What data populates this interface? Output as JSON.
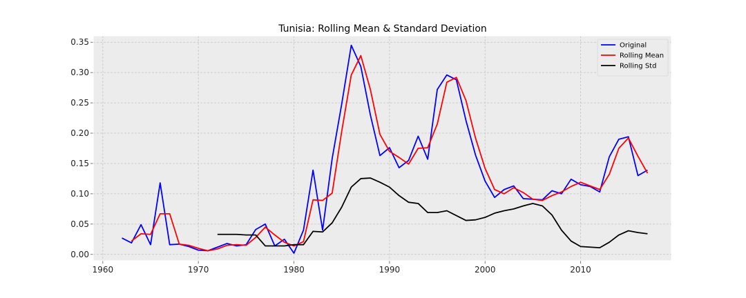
{
  "chart_data": {
    "type": "line",
    "title": "Tunisia: Rolling Mean & Standard Deviation",
    "xlabel": "",
    "ylabel": "",
    "xlim": [
      1959,
      2019.5
    ],
    "ylim": [
      -0.0105,
      0.3605
    ],
    "x_ticks": [
      1960,
      1970,
      1980,
      1990,
      2000,
      2010
    ],
    "y_ticks": [
      0.0,
      0.05,
      0.1,
      0.15,
      0.2,
      0.25,
      0.3,
      0.35
    ],
    "x_tick_labels": [
      "1960",
      "1970",
      "1980",
      "1990",
      "2000",
      "2010"
    ],
    "y_tick_labels": [
      "0.00",
      "0.05",
      "0.10",
      "0.15",
      "0.20",
      "0.25",
      "0.30",
      "0.35"
    ],
    "grid": true,
    "legend_position": "top-right",
    "series": [
      {
        "name": "Original",
        "color": "#0000ff",
        "points": [
          [
            1962,
            0.027
          ],
          [
            1963,
            0.019
          ],
          [
            1964,
            0.049
          ],
          [
            1965,
            0.016
          ],
          [
            1966,
            0.118
          ],
          [
            1967,
            0.016
          ],
          [
            1968,
            0.017
          ],
          [
            1969,
            0.013
          ],
          [
            1970,
            0.007
          ],
          [
            1971,
            0.006
          ],
          [
            1972,
            0.012
          ],
          [
            1973,
            0.018
          ],
          [
            1974,
            0.014
          ],
          [
            1975,
            0.016
          ],
          [
            1976,
            0.041
          ],
          [
            1977,
            0.05
          ],
          [
            1978,
            0.014
          ],
          [
            1979,
            0.025
          ],
          [
            1980,
            0.002
          ],
          [
            1981,
            0.04
          ],
          [
            1982,
            0.139
          ],
          [
            1983,
            0.04
          ],
          [
            1984,
            0.158
          ],
          [
            1985,
            0.248
          ],
          [
            1986,
            0.345
          ],
          [
            1987,
            0.31
          ],
          [
            1988,
            0.23
          ],
          [
            1989,
            0.163
          ],
          [
            1990,
            0.176
          ],
          [
            1991,
            0.143
          ],
          [
            1992,
            0.155
          ],
          [
            1993,
            0.195
          ],
          [
            1994,
            0.157
          ],
          [
            1995,
            0.272
          ],
          [
            1996,
            0.296
          ],
          [
            1997,
            0.288
          ],
          [
            1998,
            0.221
          ],
          [
            1999,
            0.164
          ],
          [
            2000,
            0.121
          ],
          [
            2001,
            0.094
          ],
          [
            2002,
            0.107
          ],
          [
            2003,
            0.113
          ],
          [
            2004,
            0.092
          ],
          [
            2005,
            0.091
          ],
          [
            2006,
            0.09
          ],
          [
            2007,
            0.105
          ],
          [
            2008,
            0.1
          ],
          [
            2009,
            0.124
          ],
          [
            2010,
            0.115
          ],
          [
            2011,
            0.112
          ],
          [
            2012,
            0.103
          ],
          [
            2013,
            0.161
          ],
          [
            2014,
            0.19
          ],
          [
            2015,
            0.194
          ],
          [
            2016,
            0.13
          ],
          [
            2017,
            0.139
          ]
        ]
      },
      {
        "name": "Rolling Mean",
        "color": "#ff0000",
        "points": [
          [
            1963,
            0.022
          ],
          [
            1964,
            0.034
          ],
          [
            1965,
            0.033
          ],
          [
            1966,
            0.067
          ],
          [
            1967,
            0.067
          ],
          [
            1968,
            0.017
          ],
          [
            1969,
            0.015
          ],
          [
            1970,
            0.01
          ],
          [
            1971,
            0.006
          ],
          [
            1972,
            0.009
          ],
          [
            1973,
            0.015
          ],
          [
            1974,
            0.016
          ],
          [
            1975,
            0.015
          ],
          [
            1976,
            0.028
          ],
          [
            1977,
            0.045
          ],
          [
            1978,
            0.032
          ],
          [
            1979,
            0.02
          ],
          [
            1980,
            0.014
          ],
          [
            1981,
            0.021
          ],
          [
            1982,
            0.09
          ],
          [
            1983,
            0.089
          ],
          [
            1984,
            0.101
          ],
          [
            1985,
            0.203
          ],
          [
            1986,
            0.296
          ],
          [
            1987,
            0.328
          ],
          [
            1988,
            0.272
          ],
          [
            1989,
            0.198
          ],
          [
            1990,
            0.17
          ],
          [
            1991,
            0.16
          ],
          [
            1992,
            0.149
          ],
          [
            1993,
            0.175
          ],
          [
            1994,
            0.176
          ],
          [
            1995,
            0.215
          ],
          [
            1996,
            0.284
          ],
          [
            1997,
            0.292
          ],
          [
            1998,
            0.254
          ],
          [
            1999,
            0.192
          ],
          [
            2000,
            0.142
          ],
          [
            2001,
            0.107
          ],
          [
            2002,
            0.1
          ],
          [
            2003,
            0.11
          ],
          [
            2004,
            0.102
          ],
          [
            2005,
            0.091
          ],
          [
            2006,
            0.089
          ],
          [
            2007,
            0.097
          ],
          [
            2008,
            0.103
          ],
          [
            2009,
            0.112
          ],
          [
            2010,
            0.119
          ],
          [
            2011,
            0.113
          ],
          [
            2012,
            0.107
          ],
          [
            2013,
            0.132
          ],
          [
            2014,
            0.175
          ],
          [
            2015,
            0.192
          ],
          [
            2016,
            0.162
          ],
          [
            2017,
            0.134
          ]
        ]
      },
      {
        "name": "Rolling Std",
        "color": "#000000",
        "points": [
          [
            1972,
            0.033
          ],
          [
            1973,
            0.033
          ],
          [
            1974,
            0.033
          ],
          [
            1975,
            0.032
          ],
          [
            1976,
            0.032
          ],
          [
            1977,
            0.014
          ],
          [
            1978,
            0.014
          ],
          [
            1979,
            0.014
          ],
          [
            1980,
            0.016
          ],
          [
            1981,
            0.016
          ],
          [
            1982,
            0.038
          ],
          [
            1983,
            0.037
          ],
          [
            1984,
            0.052
          ],
          [
            1985,
            0.078
          ],
          [
            1986,
            0.111
          ],
          [
            1987,
            0.125
          ],
          [
            1988,
            0.126
          ],
          [
            1989,
            0.119
          ],
          [
            1990,
            0.111
          ],
          [
            1991,
            0.097
          ],
          [
            1992,
            0.086
          ],
          [
            1993,
            0.084
          ],
          [
            1994,
            0.069
          ],
          [
            1995,
            0.069
          ],
          [
            1996,
            0.072
          ],
          [
            1997,
            0.064
          ],
          [
            1998,
            0.056
          ],
          [
            1999,
            0.057
          ],
          [
            2000,
            0.061
          ],
          [
            2001,
            0.068
          ],
          [
            2002,
            0.072
          ],
          [
            2003,
            0.075
          ],
          [
            2004,
            0.08
          ],
          [
            2005,
            0.084
          ],
          [
            2006,
            0.08
          ],
          [
            2007,
            0.065
          ],
          [
            2008,
            0.04
          ],
          [
            2009,
            0.022
          ],
          [
            2010,
            0.013
          ],
          [
            2011,
            0.012
          ],
          [
            2012,
            0.011
          ],
          [
            2013,
            0.02
          ],
          [
            2014,
            0.032
          ],
          [
            2015,
            0.039
          ],
          [
            2016,
            0.036
          ],
          [
            2017,
            0.034
          ]
        ]
      }
    ]
  }
}
